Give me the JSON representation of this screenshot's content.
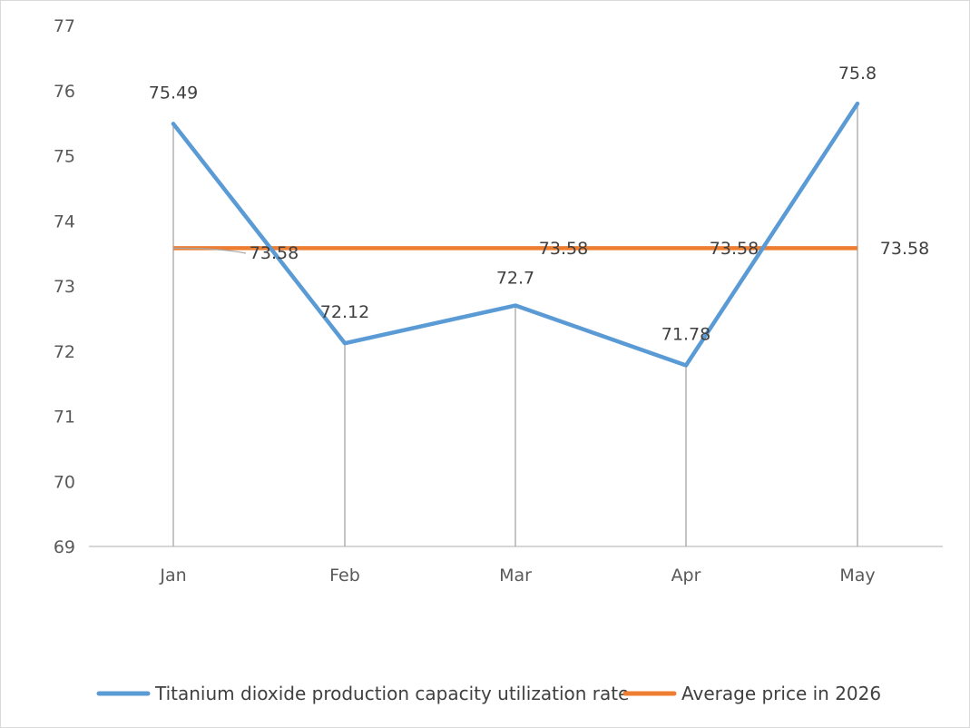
{
  "chart_data": {
    "type": "line",
    "categories": [
      "Jan",
      "Feb",
      "Mar",
      "Apr",
      "May"
    ],
    "ylim": [
      69,
      77
    ],
    "yticks": [
      69,
      70,
      71,
      72,
      73,
      74,
      75,
      76,
      77
    ],
    "grid": "vertical drop lines at each category",
    "legend_position": "bottom",
    "series": [
      {
        "name": "Titanium dioxide production capacity utilization rate",
        "color": "#5b9bd5",
        "values": [
          75.49,
          72.12,
          72.7,
          71.78,
          75.8
        ],
        "labels": [
          "75.49",
          "72.12",
          "72.7",
          "71.78",
          "75.8"
        ]
      },
      {
        "name": "Average price in 2026",
        "color": "#ed7d31",
        "values": [
          73.58,
          73.58,
          73.58,
          73.58,
          73.58
        ],
        "labels": [
          "73.58",
          "73.58",
          "73.58",
          "73.58",
          "73.58"
        ]
      }
    ]
  }
}
